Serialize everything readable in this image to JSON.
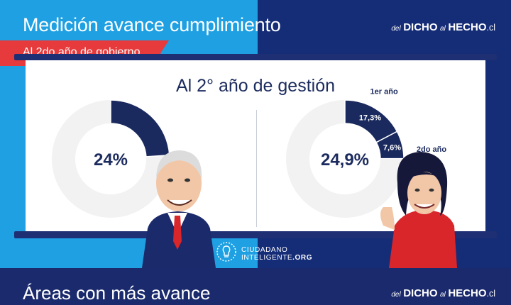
{
  "header": {
    "title": "Medición avance cumplimiento",
    "ribbon": "Al 2do año de gobierno"
  },
  "brand": {
    "del": "del",
    "dicho": "DICHO",
    "al": "al",
    "hecho": "HECHO",
    "tld": ".cl"
  },
  "board": {
    "title": "Al 2° año de gestión"
  },
  "footer": {
    "title": "Áreas con más avance"
  },
  "logo": {
    "line1": "CIUDADANO",
    "line2a": "INTELIGENTE",
    "line2b": ".ORG"
  },
  "colors": {
    "navy": "#152c77",
    "blue": "#1ea0e2",
    "red": "#e63a3c",
    "ring": "#f2f2f2",
    "slice": "#1a2a5e"
  },
  "chart_data": [
    {
      "type": "pie",
      "center_label": "24%",
      "slices": [
        {
          "label": "",
          "value": 24
        }
      ]
    },
    {
      "type": "pie",
      "center_label": "24,9%",
      "slices": [
        {
          "label": "1er año",
          "value": 17.3,
          "value_label": "17,3%"
        },
        {
          "label": "2do año",
          "value": 7.6,
          "value_label": "7,6%"
        }
      ]
    }
  ]
}
